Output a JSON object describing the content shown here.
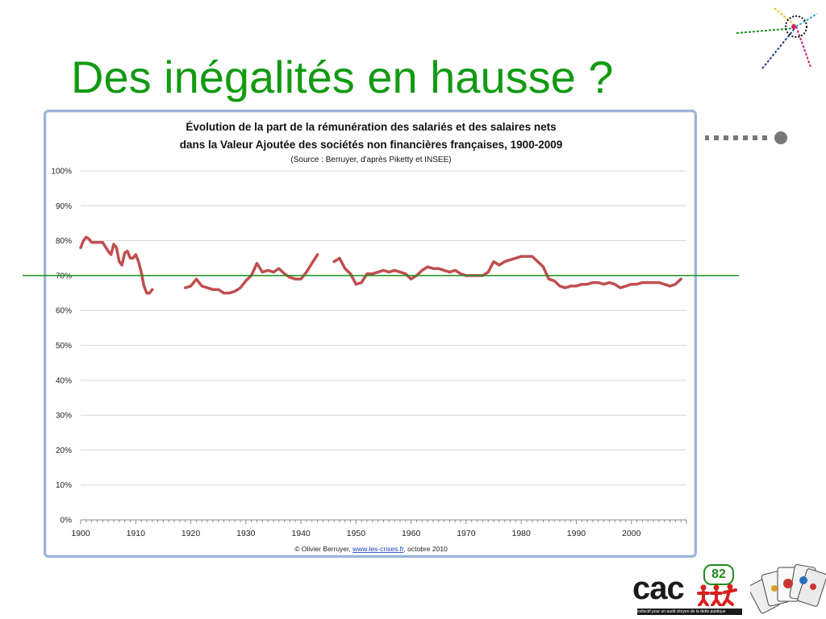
{
  "slide": {
    "title": "Des inégalités en hausse ?",
    "accent_color": "#129a12",
    "reference_line": {
      "value": 70,
      "color": "#1e8f1e"
    }
  },
  "logo": {
    "text": "cac",
    "badge": "82",
    "tagline": "collectif pour un audit citoyen de la dette publique"
  },
  "chart_data": {
    "type": "line",
    "title_line1": "Évolution de la part de la rémunération des salariés et des salaires nets",
    "title_line2": "dans la Valeur Ajoutée des sociétés non financières françaises, 1900-2009",
    "subtitle": "(Source : Berruyer, d'après Piketty et INSEE)",
    "credit_prefix": "© Olivier Berruyer, ",
    "credit_link": "www.les-crises.fr",
    "credit_suffix": ", octobre 2010",
    "xlim": [
      1900,
      2010
    ],
    "ylim": [
      0,
      100
    ],
    "x_ticks": [
      "1900",
      "1910",
      "1920",
      "1930",
      "1940",
      "1950",
      "1960",
      "1970",
      "1980",
      "1990",
      "2000"
    ],
    "y_ticks": [
      "0%",
      "10%",
      "20%",
      "30%",
      "40%",
      "50%",
      "60%",
      "70%",
      "80%",
      "90%",
      "100%"
    ],
    "grid": true,
    "line_color": "#bf4f4f",
    "segments": [
      [
        [
          1900,
          78
        ],
        [
          1900.5,
          80
        ],
        [
          1901,
          81
        ],
        [
          1901.5,
          80.5
        ],
        [
          1902,
          79.5
        ],
        [
          1903,
          79.5
        ],
        [
          1904,
          79.5
        ],
        [
          1905,
          77
        ],
        [
          1905.5,
          76
        ],
        [
          1906,
          79
        ],
        [
          1906.5,
          78
        ],
        [
          1907,
          74
        ],
        [
          1907.5,
          73
        ],
        [
          1908,
          76.5
        ],
        [
          1908.5,
          77
        ],
        [
          1909,
          75
        ],
        [
          1909.5,
          75
        ],
        [
          1910,
          76
        ],
        [
          1910.5,
          74
        ],
        [
          1911,
          71
        ],
        [
          1911.5,
          67
        ],
        [
          1912,
          65
        ],
        [
          1912.5,
          65
        ],
        [
          1913,
          66
        ]
      ],
      [
        [
          1919,
          66.5
        ],
        [
          1920,
          67
        ],
        [
          1920.5,
          68
        ],
        [
          1921,
          69
        ],
        [
          1922,
          67
        ],
        [
          1923,
          66.5
        ],
        [
          1924,
          66
        ],
        [
          1925,
          66
        ],
        [
          1926,
          65
        ],
        [
          1927,
          65
        ],
        [
          1928,
          65.5
        ],
        [
          1929,
          66.5
        ],
        [
          1930,
          68.5
        ],
        [
          1931,
          70
        ],
        [
          1932,
          73.5
        ],
        [
          1933,
          71
        ],
        [
          1934,
          71.5
        ],
        [
          1935,
          71
        ],
        [
          1936,
          72
        ],
        [
          1937,
          70.5
        ],
        [
          1938,
          69.5
        ],
        [
          1939,
          69
        ],
        [
          1940,
          69
        ],
        [
          1941,
          71
        ],
        [
          1942,
          73.5
        ],
        [
          1943,
          76
        ]
      ],
      [
        [
          1946,
          74
        ],
        [
          1947,
          75
        ],
        [
          1948,
          72
        ],
        [
          1949,
          70.5
        ],
        [
          1950,
          67.5
        ],
        [
          1951,
          68
        ],
        [
          1952,
          70.5
        ],
        [
          1953,
          70.5
        ],
        [
          1954,
          71
        ],
        [
          1955,
          71.5
        ],
        [
          1956,
          71
        ],
        [
          1957,
          71.5
        ],
        [
          1958,
          71
        ],
        [
          1959,
          70.5
        ],
        [
          1960,
          69
        ],
        [
          1961,
          70
        ],
        [
          1962,
          71.5
        ],
        [
          1963,
          72.5
        ],
        [
          1964,
          72
        ],
        [
          1965,
          72
        ],
        [
          1966,
          71.5
        ],
        [
          1967,
          71
        ],
        [
          1968,
          71.5
        ],
        [
          1969,
          70.5
        ],
        [
          1970,
          70
        ],
        [
          1971,
          70
        ],
        [
          1972,
          70
        ],
        [
          1973,
          70
        ],
        [
          1974,
          71
        ],
        [
          1975,
          74
        ],
        [
          1976,
          73
        ],
        [
          1977,
          74
        ],
        [
          1978,
          74.5
        ],
        [
          1979,
          75
        ],
        [
          1980,
          75.5
        ],
        [
          1981,
          75.5
        ],
        [
          1982,
          75.5
        ],
        [
          1983,
          74
        ],
        [
          1984,
          72.5
        ],
        [
          1985,
          69
        ],
        [
          1986,
          68.5
        ],
        [
          1987,
          67
        ],
        [
          1988,
          66.5
        ],
        [
          1989,
          67
        ],
        [
          1990,
          67
        ],
        [
          1991,
          67.5
        ],
        [
          1992,
          67.5
        ],
        [
          1993,
          68
        ],
        [
          1994,
          68
        ],
        [
          1995,
          67.5
        ],
        [
          1996,
          68
        ],
        [
          1997,
          67.5
        ],
        [
          1998,
          66.5
        ],
        [
          1999,
          67
        ],
        [
          2000,
          67.5
        ],
        [
          2001,
          67.5
        ],
        [
          2002,
          68
        ],
        [
          2003,
          68
        ],
        [
          2004,
          68
        ],
        [
          2005,
          68
        ],
        [
          2006,
          67.5
        ],
        [
          2007,
          67
        ],
        [
          2008,
          67.5
        ],
        [
          2009,
          69
        ]
      ]
    ]
  }
}
